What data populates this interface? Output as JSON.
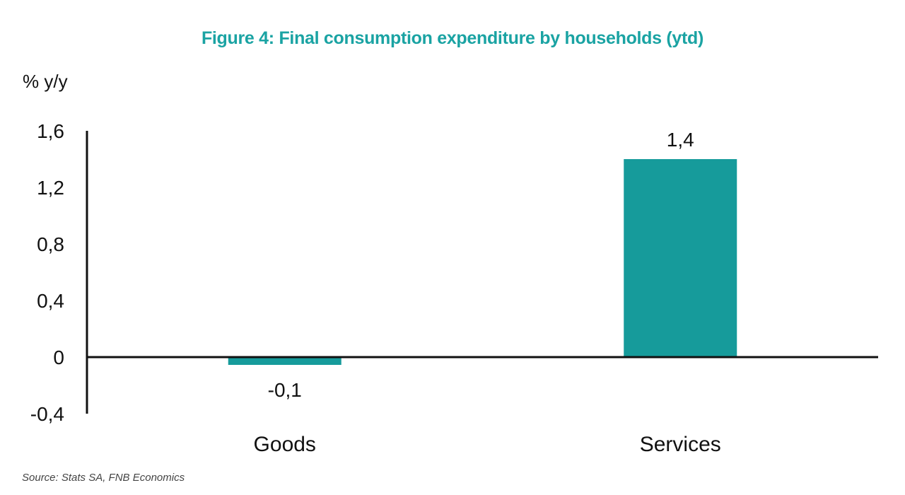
{
  "chart_data": {
    "type": "bar",
    "title": "Figure 4: Final consumption expenditure by households (ytd)",
    "xlabel": "",
    "ylabel": "% y/y",
    "ylim": [
      -0.4,
      1.6
    ],
    "yticks": [
      1.6,
      1.2,
      0.8,
      0.4,
      0,
      -0.4
    ],
    "ytick_labels": [
      "1,6",
      "1,2",
      "0,8",
      "0,4",
      "0",
      "-0,4"
    ],
    "categories": [
      "Goods",
      "Services"
    ],
    "values": [
      -0.055,
      1.4
    ],
    "data_labels": [
      "-0,1",
      "1,4"
    ],
    "grid": false,
    "legend": "none",
    "bar_color": "#169b9b",
    "source": "Source: Stats SA, FNB Economics"
  }
}
